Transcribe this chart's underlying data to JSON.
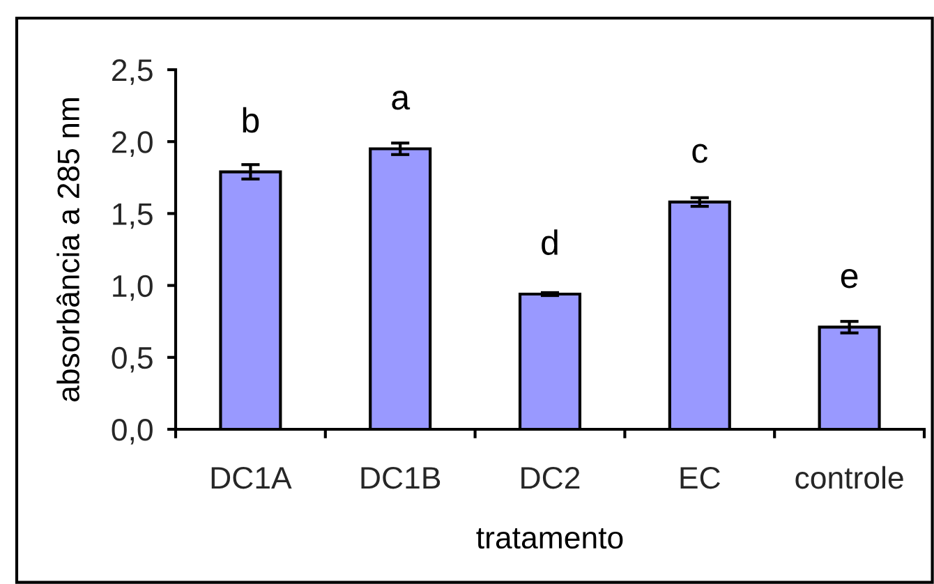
{
  "chart_data": {
    "type": "bar",
    "xlabel": "tratamento",
    "ylabel": "absorbância a 285 nm",
    "categories": [
      "DC1A",
      "DC1B",
      "DC2",
      "EC",
      "controle"
    ],
    "values": [
      1.79,
      1.95,
      0.94,
      1.58,
      0.71
    ],
    "errors": [
      0.05,
      0.04,
      0.01,
      0.03,
      0.04
    ],
    "color": "#9999ff",
    "ylim": [
      0,
      2.5
    ],
    "yticks": [
      {
        "value": 0,
        "label": "0,0"
      },
      {
        "value": 0.5,
        "label": "0,5"
      },
      {
        "value": 1,
        "label": "1,0"
      },
      {
        "value": 1.5,
        "label": "1,5"
      },
      {
        "value": 2,
        "label": "2,0"
      },
      {
        "value": 2.5,
        "label": "2,5"
      }
    ],
    "grid": false,
    "annotations": [
      {
        "text": "b",
        "x": "DC1A",
        "y": 1.79
      },
      {
        "text": "a",
        "x": "DC1B",
        "y": 1.95
      },
      {
        "text": "d",
        "x": "DC2",
        "y": 0.94
      },
      {
        "text": "c",
        "x": "EC",
        "y": 1.58
      },
      {
        "text": "e",
        "x": "controle",
        "y": 0.71
      }
    ]
  }
}
